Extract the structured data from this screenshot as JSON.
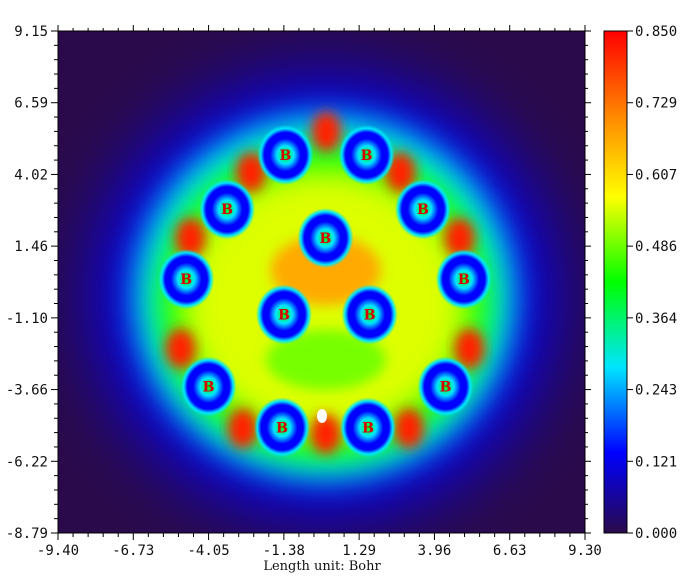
{
  "chart_data": {
    "type": "heatmap",
    "title": "",
    "xlabel": "Length unit: Bohr",
    "ylabel": "",
    "xlim": [
      -9.4,
      9.3
    ],
    "ylim": [
      -8.79,
      9.15
    ],
    "x_ticks": [
      "-9.40",
      "-6.73",
      "-4.05",
      "-1.38",
      "1.29",
      "3.96",
      "6.63",
      "9.30"
    ],
    "y_ticks": [
      "9.15",
      "6.59",
      "4.02",
      "1.46",
      "-1.10",
      "-3.66",
      "-6.22",
      "-8.79"
    ],
    "colorbar": {
      "range": [
        0.0,
        0.85
      ],
      "ticks": [
        "0.850",
        "0.729",
        "0.607",
        "0.486",
        "0.364",
        "0.243",
        "0.121",
        "0.000"
      ],
      "colors": [
        "#2a0a4a",
        "#0000ff",
        "#00e5ff",
        "#00ff00",
        "#ffff00",
        "#ff8800",
        "#ff0000"
      ]
    },
    "atoms": [
      {
        "label": "B",
        "x": -1.33,
        "y": 4.72
      },
      {
        "label": "B",
        "x": 1.55,
        "y": 4.72
      },
      {
        "label": "B",
        "x": -3.4,
        "y": 2.78
      },
      {
        "label": "B",
        "x": 3.55,
        "y": 2.78
      },
      {
        "label": "B",
        "x": 0.09,
        "y": 1.75
      },
      {
        "label": "B",
        "x": -4.85,
        "y": 0.28
      },
      {
        "label": "B",
        "x": 5.0,
        "y": 0.28
      },
      {
        "label": "B",
        "x": -1.38,
        "y": -0.98
      },
      {
        "label": "B",
        "x": 1.66,
        "y": -0.98
      },
      {
        "label": "B",
        "x": -4.06,
        "y": -3.56
      },
      {
        "label": "B",
        "x": 4.35,
        "y": -3.56
      },
      {
        "label": "B",
        "x": -1.45,
        "y": -5.02
      },
      {
        "label": "B",
        "x": 1.6,
        "y": -5.02
      }
    ]
  }
}
